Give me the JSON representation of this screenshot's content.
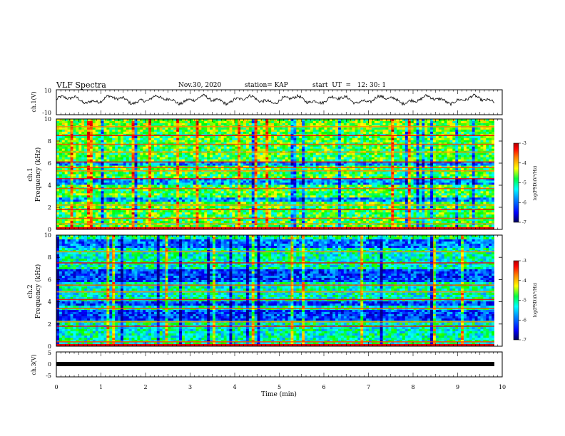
{
  "header": {
    "title": "VLF Spectra",
    "date": "Nov.30, 2020",
    "station": "station= KAP",
    "start": "start  UT  =   12: 30: 1"
  },
  "chart_data": [
    {
      "type": "line",
      "ylabel": "ch.1(V)",
      "ylim": [
        -10,
        10
      ],
      "yticks": [
        "10",
        "-10"
      ],
      "xlim": [
        0,
        10
      ],
      "note": "noisy waveform oscillating around ~2 V"
    },
    {
      "type": "heatmap",
      "ylabel": "ch.1\nFrequency (kHz)",
      "ylim": [
        0,
        10
      ],
      "yticks": [
        "0",
        "2",
        "4",
        "6",
        "8",
        "10"
      ],
      "xlim": [
        0,
        10
      ],
      "colorbar": {
        "ticks": [
          "-3",
          "-4",
          "-5",
          "-6",
          "-7"
        ],
        "label": "log(PSD)(V²/Hz)",
        "range": [
          -7,
          -3
        ]
      },
      "bands_khz": [
        0.5,
        1.0,
        1.8,
        2.2,
        3.7,
        4.6,
        5.3,
        5.6,
        6.1,
        7.0,
        7.7,
        8.5,
        9.3
      ],
      "dark_regions_khz": [
        [
          4.1,
          4.6
        ],
        [
          5.8,
          6.1
        ],
        [
          2.5,
          2.9
        ]
      ]
    },
    {
      "type": "heatmap",
      "ylabel": "ch.2\nFrequency (kHz)",
      "ylim": [
        0,
        10
      ],
      "yticks": [
        "0",
        "2",
        "4",
        "6",
        "8",
        "10"
      ],
      "xlim": [
        0,
        10
      ],
      "colorbar": {
        "ticks": [
          "-3",
          "-4",
          "-5",
          "-6",
          "-7"
        ],
        "label": "log(PSD)(V²/Hz)",
        "range": [
          -7,
          -3
        ]
      },
      "bands_khz": [
        0.1,
        0.4,
        1.8,
        2.2,
        3.4,
        4.2,
        4.9,
        5.5,
        7.5,
        8.5
      ],
      "dark_regions_khz": [
        [
          2.3,
          3.2
        ],
        [
          3.6,
          4.1
        ],
        [
          5.7,
          7.0
        ],
        [
          8.8,
          9.6
        ]
      ]
    },
    {
      "type": "line",
      "ylabel": "ch.3(V)",
      "ylim": [
        -5,
        5
      ],
      "yticks": [
        "5",
        "0",
        "-5"
      ],
      "xlim": [
        0,
        10
      ],
      "xticks": [
        "0",
        "1",
        "2",
        "3",
        "4",
        "5",
        "6",
        "7",
        "8",
        "9",
        "10"
      ],
      "xlabel": "Time (min)",
      "value_v": 0,
      "note": "thick flat line at 0 V"
    }
  ],
  "colors": {
    "scale": [
      "#00008b",
      "#0000ff",
      "#0080ff",
      "#00ffff",
      "#00ff00",
      "#ffff00",
      "#ff8000",
      "#ff0000",
      "#8b0000"
    ]
  }
}
